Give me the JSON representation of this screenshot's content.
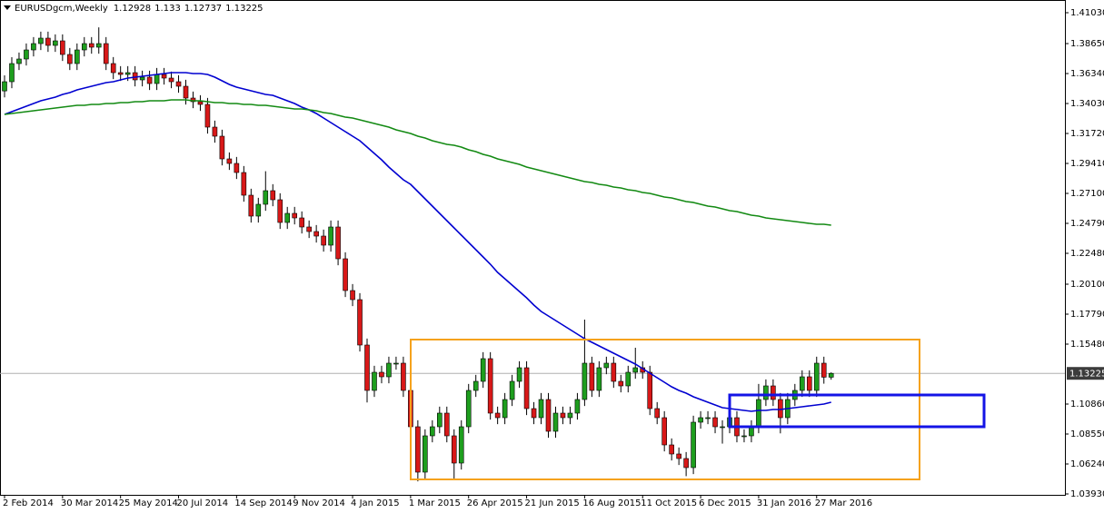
{
  "chart_data": {
    "type": "candlestick",
    "symbol": "EURUSDgcm,Weekly",
    "ylim": [
      1.0386,
      1.4201
    ],
    "yticks": [
      {
        "value": 1.4103,
        "label": "1.41030"
      },
      {
        "value": 1.3865,
        "label": "1.38650"
      },
      {
        "value": 1.3634,
        "label": "1.36340"
      },
      {
        "value": 1.3403,
        "label": "1.34030"
      },
      {
        "value": 1.3172,
        "label": "1.31720"
      },
      {
        "value": 1.2941,
        "label": "1.29410"
      },
      {
        "value": 1.271,
        "label": "1.27100"
      },
      {
        "value": 1.2479,
        "label": "1.24790"
      },
      {
        "value": 1.2248,
        "label": "1.22480"
      },
      {
        "value": 1.201,
        "label": "1.20100"
      },
      {
        "value": 1.1779,
        "label": "1.17790"
      },
      {
        "value": 1.1548,
        "label": "1.15480"
      },
      {
        "value": 1.1086,
        "label": "1.10860"
      },
      {
        "value": 1.0855,
        "label": "1.08550"
      },
      {
        "value": 1.0624,
        "label": "1.06240"
      },
      {
        "value": 1.0393,
        "label": "1.03930"
      }
    ],
    "grid": false,
    "up_color": "#1e9e1e",
    "down_color": "#d81818",
    "categories": [
      "2 Feb 2014",
      null,
      null,
      null,
      null,
      null,
      null,
      null,
      "30 Mar 2014",
      null,
      null,
      null,
      null,
      null,
      null,
      null,
      "25 May 2014",
      null,
      null,
      null,
      null,
      null,
      null,
      null,
      "20 Jul 2014",
      null,
      null,
      null,
      null,
      null,
      null,
      null,
      "14 Sep 2014",
      null,
      null,
      null,
      null,
      null,
      null,
      null,
      "9 Nov 2014",
      null,
      null,
      null,
      null,
      null,
      null,
      null,
      "4 Jan 2015",
      null,
      null,
      null,
      null,
      null,
      null,
      null,
      "1 Mar 2015",
      null,
      null,
      null,
      null,
      null,
      null,
      null,
      "26 Apr 2015",
      null,
      null,
      null,
      null,
      null,
      null,
      null,
      "21 Jun 2015",
      null,
      null,
      null,
      null,
      null,
      null,
      null,
      "16 Aug 2015",
      null,
      null,
      null,
      null,
      null,
      null,
      null,
      "11 Oct 2015",
      null,
      null,
      null,
      null,
      null,
      null,
      null,
      "6 Dec 2015",
      null,
      null,
      null,
      null,
      null,
      null,
      null,
      "31 Jan 2016",
      null,
      null,
      null,
      null,
      null,
      null,
      null,
      "27 Mar 2016",
      null,
      null
    ],
    "candles": [
      [
        1.35,
        1.362,
        1.345,
        1.3571
      ],
      [
        1.3571,
        1.376,
        1.3521,
        1.3711
      ],
      [
        1.3711,
        1.3796,
        1.3661,
        1.3746
      ],
      [
        1.3746,
        1.3866,
        1.3696,
        1.3816
      ],
      [
        1.3816,
        1.3915,
        1.3766,
        1.3865
      ],
      [
        1.3865,
        1.3957,
        1.3815,
        1.3907
      ],
      [
        1.3907,
        1.3957,
        1.3801,
        1.3851
      ],
      [
        1.3851,
        1.3936,
        1.3801,
        1.3886
      ],
      [
        1.3886,
        1.3936,
        1.3731,
        1.3781
      ],
      [
        1.3781,
        1.3831,
        1.3661,
        1.3711
      ],
      [
        1.3711,
        1.3866,
        1.3661,
        1.3816
      ],
      [
        1.3816,
        1.3915,
        1.3766,
        1.3865
      ],
      [
        1.3865,
        1.3915,
        1.3787,
        1.3837
      ],
      [
        1.3837,
        1.399,
        1.3787,
        1.3865
      ],
      [
        1.3865,
        1.3915,
        1.3661,
        1.3711
      ],
      [
        1.3711,
        1.3761,
        1.3591,
        1.3641
      ],
      [
        1.3641,
        1.3691,
        1.3577,
        1.3627
      ],
      [
        1.3627,
        1.3691,
        1.3577,
        1.3641
      ],
      [
        1.3641,
        1.3691,
        1.3535,
        1.3585
      ],
      [
        1.3585,
        1.3656,
        1.3535,
        1.3606
      ],
      [
        1.3606,
        1.3656,
        1.3507,
        1.3557
      ],
      [
        1.3557,
        1.3677,
        1.3507,
        1.3627
      ],
      [
        1.3627,
        1.3677,
        1.3549,
        1.3599
      ],
      [
        1.3599,
        1.3649,
        1.3521,
        1.3571
      ],
      [
        1.3571,
        1.3621,
        1.3486,
        1.3536
      ],
      [
        1.3536,
        1.3586,
        1.3395,
        1.3445
      ],
      [
        1.3445,
        1.3495,
        1.3367,
        1.3417
      ],
      [
        1.3417,
        1.3467,
        1.3346,
        1.3396
      ],
      [
        1.3396,
        1.3446,
        1.3171,
        1.3221
      ],
      [
        1.3221,
        1.3271,
        1.3101,
        1.3151
      ],
      [
        1.3151,
        1.3201,
        1.2926,
        1.2976
      ],
      [
        1.2976,
        1.3026,
        1.2891,
        1.2941
      ],
      [
        1.2941,
        1.2991,
        1.2821,
        1.2871
      ],
      [
        1.2871,
        1.2921,
        1.2646,
        1.2696
      ],
      [
        1.2696,
        1.2746,
        1.2485,
        1.2535
      ],
      [
        1.2535,
        1.2676,
        1.2485,
        1.2626
      ],
      [
        1.2626,
        1.2881,
        1.2576,
        1.2731
      ],
      [
        1.2731,
        1.2781,
        1.2611,
        1.2661
      ],
      [
        1.2661,
        1.2711,
        1.2436,
        1.2486
      ],
      [
        1.2486,
        1.2606,
        1.2436,
        1.2556
      ],
      [
        1.2556,
        1.2606,
        1.2471,
        1.2521
      ],
      [
        1.2521,
        1.2571,
        1.2401,
        1.2451
      ],
      [
        1.2451,
        1.2501,
        1.2366,
        1.2416
      ],
      [
        1.2416,
        1.2466,
        1.2331,
        1.2381
      ],
      [
        1.2381,
        1.2431,
        1.2261,
        1.2311
      ],
      [
        1.2311,
        1.2501,
        1.2261,
        1.2451
      ],
      [
        1.2451,
        1.2501,
        1.2156,
        1.2206
      ],
      [
        1.2206,
        1.2256,
        1.1911,
        1.1961
      ],
      [
        1.1961,
        1.2011,
        1.1841,
        1.1891
      ],
      [
        1.1891,
        1.1941,
        1.1491,
        1.1541
      ],
      [
        1.1541,
        1.1591,
        1.1098,
        1.1191
      ],
      [
        1.1191,
        1.1381,
        1.1141,
        1.1331
      ],
      [
        1.1331,
        1.1381,
        1.1246,
        1.1296
      ],
      [
        1.1296,
        1.1451,
        1.1246,
        1.1401
      ],
      [
        1.1401,
        1.1451,
        1.1351,
        1.1401
      ],
      [
        1.1401,
        1.1451,
        1.1141,
        1.1191
      ],
      [
        1.1191,
        1.1241,
        1.0861,
        1.0911
      ],
      [
        1.0911,
        1.0961,
        1.049,
        1.0561
      ],
      [
        1.0561,
        1.0891,
        1.0511,
        1.0841
      ],
      [
        1.0841,
        1.0961,
        1.0791,
        1.0911
      ],
      [
        1.0911,
        1.1066,
        1.0861,
        1.1016
      ],
      [
        1.1016,
        1.1066,
        1.0791,
        1.0841
      ],
      [
        1.0841,
        1.0891,
        1.05,
        1.0631
      ],
      [
        1.0631,
        1.0961,
        1.0581,
        1.0911
      ],
      [
        1.0911,
        1.1241,
        1.0861,
        1.1191
      ],
      [
        1.1191,
        1.1311,
        1.1141,
        1.1261
      ],
      [
        1.1261,
        1.1486,
        1.1211,
        1.1436
      ],
      [
        1.1436,
        1.1486,
        1.0966,
        1.1016
      ],
      [
        1.1016,
        1.1066,
        1.0931,
        1.0981
      ],
      [
        1.0981,
        1.1171,
        1.0931,
        1.1121
      ],
      [
        1.1121,
        1.1311,
        1.1071,
        1.1261
      ],
      [
        1.1261,
        1.1416,
        1.1211,
        1.1366
      ],
      [
        1.1366,
        1.1416,
        1.1001,
        1.1051
      ],
      [
        1.1051,
        1.1101,
        1.0931,
        1.0981
      ],
      [
        1.0981,
        1.1171,
        1.0931,
        1.1121
      ],
      [
        1.1121,
        1.1171,
        1.0826,
        1.0876
      ],
      [
        1.0876,
        1.1066,
        1.0826,
        1.1016
      ],
      [
        1.1016,
        1.1066,
        1.0931,
        1.0981
      ],
      [
        1.0981,
        1.1066,
        1.0931,
        1.1016
      ],
      [
        1.1016,
        1.1171,
        1.0966,
        1.1121
      ],
      [
        1.1121,
        1.1737,
        1.1071,
        1.1401
      ],
      [
        1.1401,
        1.1451,
        1.1141,
        1.1191
      ],
      [
        1.1191,
        1.1416,
        1.1141,
        1.1366
      ],
      [
        1.1366,
        1.1451,
        1.1316,
        1.1401
      ],
      [
        1.1401,
        1.1451,
        1.1211,
        1.1261
      ],
      [
        1.1261,
        1.1311,
        1.1176,
        1.1226
      ],
      [
        1.1226,
        1.1381,
        1.1176,
        1.1331
      ],
      [
        1.1331,
        1.152,
        1.1281,
        1.1366
      ],
      [
        1.1366,
        1.1416,
        1.1281,
        1.1331
      ],
      [
        1.1331,
        1.1381,
        1.1001,
        1.1051
      ],
      [
        1.1051,
        1.1101,
        1.0931,
        1.0981
      ],
      [
        1.0981,
        1.1031,
        1.0721,
        1.0771
      ],
      [
        1.0771,
        1.0821,
        1.0651,
        1.0701
      ],
      [
        1.0701,
        1.0751,
        1.0616,
        1.0666
      ],
      [
        1.0666,
        1.0716,
        1.053,
        1.0596
      ],
      [
        1.0596,
        1.0996,
        1.0546,
        1.0946
      ],
      [
        1.0946,
        1.1031,
        1.0896,
        1.0981
      ],
      [
        1.0981,
        1.1031,
        1.0931,
        1.0981
      ],
      [
        1.0981,
        1.1031,
        1.0861,
        1.0911
      ],
      [
        1.0911,
        1.0961,
        1.0781,
        1.0911
      ],
      [
        1.0911,
        1.1031,
        1.0861,
        1.0981
      ],
      [
        1.0981,
        1.1031,
        1.0791,
        1.0841
      ],
      [
        1.0841,
        1.0891,
        1.0791,
        1.0841
      ],
      [
        1.0841,
        1.0961,
        1.0791,
        1.0911
      ],
      [
        1.0911,
        1.1241,
        1.0861,
        1.1121
      ],
      [
        1.1121,
        1.1276,
        1.1071,
        1.1226
      ],
      [
        1.1226,
        1.1276,
        1.1071,
        1.1121
      ],
      [
        1.1121,
        1.1171,
        1.086,
        1.0981
      ],
      [
        1.0981,
        1.1171,
        1.0931,
        1.1121
      ],
      [
        1.1121,
        1.1241,
        1.1071,
        1.1191
      ],
      [
        1.1191,
        1.1346,
        1.1141,
        1.1296
      ],
      [
        1.1296,
        1.1346,
        1.1141,
        1.1191
      ],
      [
        1.1191,
        1.1451,
        1.1141,
        1.1401
      ],
      [
        1.1401,
        1.1451,
        1.1243,
        1.1293
      ],
      [
        1.12928,
        1.133,
        1.12737,
        1.13225
      ]
    ],
    "series": [
      {
        "color": "#0000d0",
        "values": [
          1.3319,
          1.334,
          1.3361,
          1.3382,
          1.3403,
          1.3424,
          1.3438,
          1.3452,
          1.3473,
          1.3487,
          1.3508,
          1.3522,
          1.3536,
          1.355,
          1.3564,
          1.3571,
          1.3585,
          1.3599,
          1.3606,
          1.3613,
          1.362,
          1.3627,
          1.3634,
          1.3641,
          1.3641,
          1.3641,
          1.3634,
          1.3634,
          1.3627,
          1.3606,
          1.3578,
          1.355,
          1.3529,
          1.3515,
          1.3501,
          1.3487,
          1.3473,
          1.3466,
          1.3445,
          1.3424,
          1.3403,
          1.3375,
          1.3354,
          1.3326,
          1.3291,
          1.3256,
          1.3221,
          1.3186,
          1.3151,
          1.3116,
          1.3067,
          1.3018,
          1.2969,
          1.2913,
          1.2864,
          1.2815,
          1.278,
          1.2724,
          1.2668,
          1.2612,
          1.2556,
          1.25,
          1.2444,
          1.2388,
          1.2332,
          1.2276,
          1.222,
          1.2164,
          1.2101,
          1.2052,
          1.2003,
          1.1954,
          1.1905,
          1.1849,
          1.18,
          1.1765,
          1.173,
          1.1695,
          1.166,
          1.1625,
          1.159,
          1.1562,
          1.1534,
          1.1506,
          1.1478,
          1.145,
          1.1422,
          1.1394,
          1.1359,
          1.1324,
          1.1289,
          1.1254,
          1.1219,
          1.1191,
          1.117,
          1.1142,
          1.1121,
          1.11,
          1.1079,
          1.1058,
          1.1051,
          1.1044,
          1.1037,
          1.103,
          1.1037,
          1.1037,
          1.1044,
          1.1044,
          1.1051,
          1.1058,
          1.1065,
          1.1072,
          1.1079,
          1.1086,
          1.11
        ]
      },
      {
        "color": "#138a13",
        "values": [
          1.3319,
          1.3326,
          1.3333,
          1.334,
          1.3347,
          1.3354,
          1.3361,
          1.3368,
          1.3375,
          1.3382,
          1.3389,
          1.3389,
          1.3396,
          1.3396,
          1.3403,
          1.3403,
          1.341,
          1.341,
          1.3417,
          1.3417,
          1.3424,
          1.3424,
          1.3424,
          1.3431,
          1.3431,
          1.3431,
          1.3424,
          1.3424,
          1.3417,
          1.341,
          1.341,
          1.3403,
          1.3403,
          1.3396,
          1.3396,
          1.3389,
          1.3389,
          1.3382,
          1.3375,
          1.3368,
          1.3361,
          1.3361,
          1.3354,
          1.3347,
          1.3333,
          1.3326,
          1.3312,
          1.3298,
          1.3291,
          1.3277,
          1.3263,
          1.3249,
          1.3235,
          1.3221,
          1.32,
          1.3186,
          1.3172,
          1.3151,
          1.3137,
          1.3116,
          1.3102,
          1.3088,
          1.3081,
          1.3067,
          1.3046,
          1.3032,
          1.3011,
          1.2997,
          1.2976,
          1.2962,
          1.2948,
          1.2934,
          1.2913,
          1.2899,
          1.2885,
          1.2871,
          1.2857,
          1.2843,
          1.2829,
          1.2815,
          1.2801,
          1.2794,
          1.278,
          1.2773,
          1.2759,
          1.2752,
          1.2738,
          1.2731,
          1.2717,
          1.271,
          1.2696,
          1.2682,
          1.2675,
          1.2661,
          1.2647,
          1.264,
          1.2626,
          1.2612,
          1.2605,
          1.2591,
          1.2577,
          1.257,
          1.2556,
          1.2542,
          1.2535,
          1.2521,
          1.2514,
          1.2507,
          1.25,
          1.2493,
          1.2486,
          1.2479,
          1.2472,
          1.2472,
          1.2465
        ]
      }
    ]
  }
}
